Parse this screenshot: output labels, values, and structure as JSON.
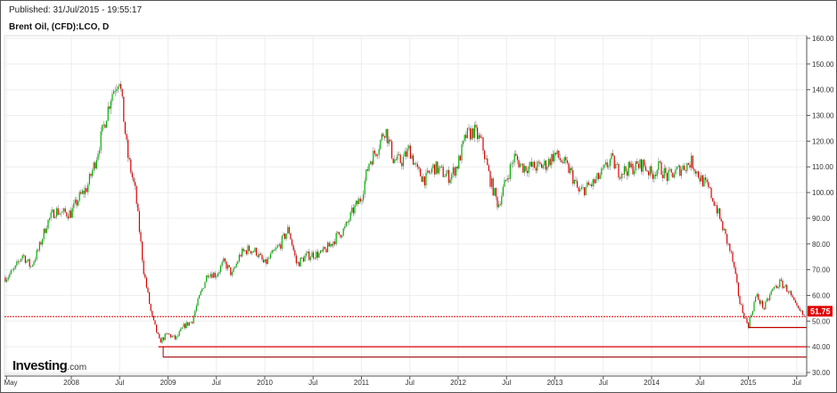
{
  "header": {
    "published": "Published: 31/Jul/2015 - 19:55:17",
    "title": "Brent Oil, (CFD):LCO, D"
  },
  "logo": {
    "brand": "Investing",
    "suffix": ".com"
  },
  "chart_data": {
    "type": "candlestick",
    "title": "Brent Oil, (CFD):LCO, D",
    "ylim": [
      30,
      160
    ],
    "y_ticks": [
      "30.00",
      "40.00",
      "50.00",
      "60.00",
      "70.00",
      "80.00",
      "90.00",
      "100.00",
      "110.00",
      "120.00",
      "130.00",
      "140.00",
      "150.00",
      "160.00"
    ],
    "x_ticks": [
      {
        "label": "May",
        "t": 2007.33
      },
      {
        "label": "2008",
        "t": 2008
      },
      {
        "label": "Jul",
        "t": 2008.5
      },
      {
        "label": "2009",
        "t": 2009
      },
      {
        "label": "Jul",
        "t": 2009.5
      },
      {
        "label": "2010",
        "t": 2010
      },
      {
        "label": "Jul",
        "t": 2010.5
      },
      {
        "label": "2011",
        "t": 2011
      },
      {
        "label": "Jul",
        "t": 2011.5
      },
      {
        "label": "2012",
        "t": 2012
      },
      {
        "label": "Jul",
        "t": 2012.5
      },
      {
        "label": "2013",
        "t": 2013
      },
      {
        "label": "Jul",
        "t": 2013.5
      },
      {
        "label": "2014",
        "t": 2014
      },
      {
        "label": "Jul",
        "t": 2014.5
      },
      {
        "label": "2015",
        "t": 2015
      },
      {
        "label": "Jul",
        "t": 2015.5
      }
    ],
    "monthly_approx_close": {
      "start": 2007.33,
      "values": [
        67,
        70,
        76,
        71,
        78,
        88,
        93,
        92,
        92,
        98,
        102,
        112,
        125,
        138,
        145,
        115,
        100,
        70,
        52,
        42,
        45,
        43,
        48,
        50,
        60,
        69,
        68,
        73,
        68,
        76,
        78,
        77,
        72,
        76,
        80,
        86,
        72,
        75,
        76,
        76,
        79,
        83,
        86,
        93,
        98,
        112,
        117,
        125,
        113,
        112,
        117,
        108,
        105,
        110,
        108,
        106,
        111,
        122,
        124,
        119,
        105,
        95,
        105,
        114,
        110,
        110,
        110,
        111,
        115,
        112,
        108,
        100,
        102,
        104,
        108,
        113,
        108,
        109,
        110,
        111,
        107,
        110,
        106,
        108,
        110,
        112,
        106,
        102,
        95,
        85,
        75,
        57,
        48,
        60,
        55,
        62,
        65,
        62,
        55,
        51.75
      ]
    },
    "last_price": "51.75",
    "horizontal_lines": [
      {
        "value": 51.75,
        "style": "dotted",
        "color": "#e00000"
      },
      {
        "value": 47.5,
        "from": 2015,
        "color": "#c00000"
      },
      {
        "value": 40,
        "from": 2008.9,
        "color": "#e00000"
      },
      {
        "value": 36,
        "from": 2008.95,
        "color": "#a00000"
      }
    ],
    "up_color": "#00b000",
    "down_color": "#e00000"
  }
}
